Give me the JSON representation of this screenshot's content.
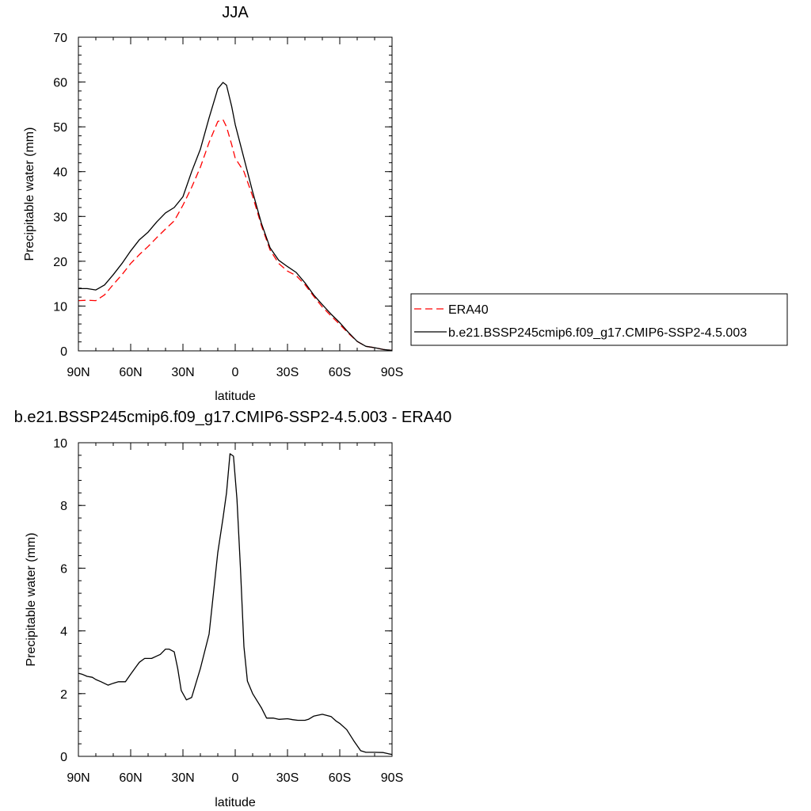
{
  "colors": {
    "era40": "#ff0000",
    "model": "#000000",
    "axis": "#000000"
  },
  "legend": {
    "placement": "right",
    "entries": [
      {
        "label": "ERA40",
        "style": "dashed",
        "color": "#ff0000"
      },
      {
        "label": "b.e21.BSSP245cmip6.f09_g17.CMIP6-SSP2-4.5.003",
        "style": "solid",
        "color": "#000000"
      }
    ]
  },
  "chart_data": [
    {
      "type": "line",
      "title": "JJA",
      "xlabel": "latitude",
      "ylabel": "Precipitable water (mm)",
      "xlim": [
        90,
        -90
      ],
      "ylim": [
        0,
        70
      ],
      "xticks": [
        90,
        60,
        30,
        0,
        -30,
        -60,
        -90
      ],
      "xtick_labels": [
        "90N",
        "60N",
        "30N",
        "0",
        "30S",
        "60S",
        "90S"
      ],
      "yticks": [
        0,
        10,
        20,
        30,
        40,
        50,
        60,
        70
      ],
      "ytick_labels": [
        "0",
        "10",
        "20",
        "30",
        "40",
        "50",
        "60",
        "70"
      ],
      "grid": false,
      "series": [
        {
          "name": "ERA40",
          "style": "dashed",
          "x": [
            90,
            85,
            80,
            75,
            70,
            65,
            60,
            55,
            50,
            45,
            40,
            35,
            30,
            25,
            20,
            15,
            10,
            7,
            5,
            2,
            0,
            -5,
            -10,
            -15,
            -20,
            -25,
            -30,
            -35,
            -40,
            -45,
            -50,
            -55,
            -60,
            -65,
            -70,
            -75,
            -80,
            -85,
            -90
          ],
          "y": [
            11.2,
            11.3,
            11.2,
            12.5,
            14.8,
            17.0,
            19.5,
            21.5,
            23.3,
            25.3,
            27.2,
            29.0,
            32.5,
            36.5,
            41.0,
            46.5,
            51.2,
            51.6,
            50.0,
            46.0,
            43.0,
            40.0,
            34.5,
            28.0,
            22.5,
            19.5,
            17.8,
            16.8,
            14.8,
            12.2,
            9.8,
            7.8,
            5.9,
            3.9,
            2.1,
            1.0,
            0.7,
            0.3,
            0.1
          ]
        },
        {
          "name": "b.e21.BSSP245cmip6.f09_g17.CMIP6-SSP2-4.5.003",
          "style": "solid",
          "x": [
            90,
            85,
            80,
            75,
            70,
            65,
            60,
            55,
            50,
            45,
            40,
            35,
            30,
            25,
            20,
            15,
            10,
            7,
            5,
            2,
            0,
            -5,
            -10,
            -15,
            -20,
            -25,
            -30,
            -35,
            -40,
            -45,
            -50,
            -55,
            -60,
            -65,
            -70,
            -75,
            -80,
            -85,
            -90
          ],
          "y": [
            13.9,
            13.9,
            13.6,
            14.7,
            17.0,
            19.5,
            22.3,
            24.8,
            26.5,
            28.8,
            30.8,
            32.0,
            34.4,
            40.0,
            45.0,
            52.0,
            58.5,
            59.9,
            59.3,
            54.5,
            50.5,
            43.0,
            35.5,
            28.5,
            23.0,
            20.2,
            18.8,
            17.5,
            15.2,
            12.5,
            10.3,
            8.2,
            6.3,
            4.1,
            2.1,
            1.0,
            0.7,
            0.3,
            0.1
          ]
        }
      ]
    },
    {
      "type": "line",
      "title": "b.e21.BSSP245cmip6.f09_g17.CMIP6-SSP2-4.5.003 - ERA40",
      "xlabel": "latitude",
      "ylabel": "Precipitable water (mm)",
      "xlim": [
        90,
        -90
      ],
      "ylim": [
        0,
        10
      ],
      "xticks": [
        90,
        60,
        30,
        0,
        -30,
        -60,
        -90
      ],
      "xtick_labels": [
        "90N",
        "60N",
        "30N",
        "0",
        "30S",
        "60S",
        "90S"
      ],
      "yticks": [
        0,
        2,
        4,
        6,
        8,
        10
      ],
      "ytick_labels": [
        "0",
        "2",
        "4",
        "6",
        "8",
        "10"
      ],
      "grid": false,
      "series": [
        {
          "style": "solid",
          "x": [
            90,
            88,
            85,
            82,
            80,
            77,
            73,
            70,
            67,
            63,
            60,
            57,
            55,
            52,
            48,
            45,
            43,
            40,
            38,
            35,
            33,
            31,
            28,
            25,
            20,
            15,
            10,
            7,
            5,
            3,
            1,
            -1,
            -3,
            -5,
            -7,
            -10,
            -15,
            -18,
            -22,
            -25,
            -30,
            -33,
            -36,
            -40,
            -42,
            -45,
            -50,
            -55,
            -58,
            -60,
            -64,
            -68,
            -72,
            -75,
            -80,
            -85,
            -88,
            -90
          ],
          "y": [
            2.65,
            2.62,
            2.55,
            2.52,
            2.45,
            2.38,
            2.27,
            2.33,
            2.38,
            2.38,
            2.62,
            2.85,
            3.0,
            3.12,
            3.12,
            3.2,
            3.25,
            3.42,
            3.42,
            3.33,
            2.8,
            2.1,
            1.8,
            1.88,
            2.8,
            3.9,
            6.5,
            7.6,
            8.4,
            9.65,
            9.57,
            8.2,
            6.0,
            3.5,
            2.4,
            2.0,
            1.55,
            1.22,
            1.22,
            1.18,
            1.2,
            1.17,
            1.15,
            1.15,
            1.18,
            1.28,
            1.34,
            1.27,
            1.12,
            1.05,
            0.85,
            0.5,
            0.18,
            0.13,
            0.13,
            0.12,
            0.08,
            0.06
          ]
        }
      ]
    }
  ]
}
